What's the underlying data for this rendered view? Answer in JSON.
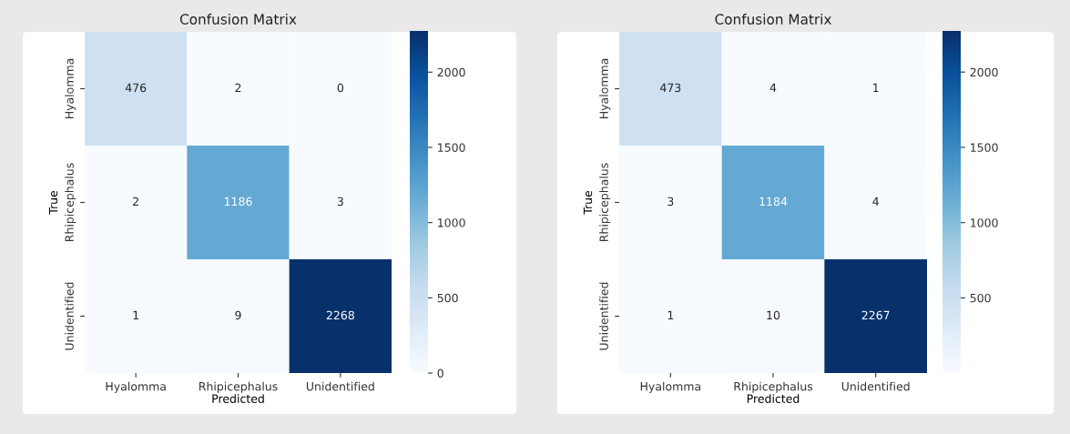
{
  "chart_data": [
    {
      "type": "heatmap",
      "title": "Confusion Matrix",
      "xlabel": "Predicted",
      "ylabel": "True",
      "categories": [
        "Hyalomma",
        "Rhipicephalus",
        "Unidentified"
      ],
      "y_categories": [
        "Hyalomma",
        "Rhipicephalus",
        "Unidentified"
      ],
      "cells": [
        [
          476,
          2,
          0
        ],
        [
          2,
          1186,
          3
        ],
        [
          1,
          9,
          2268
        ]
      ],
      "clim": [
        0,
        2268
      ],
      "cticks": [
        0,
        500,
        1000,
        1500,
        2000
      ],
      "data_labels": true
    },
    {
      "type": "heatmap",
      "title": "Confusion Matrix",
      "xlabel": "Predicted",
      "ylabel": "True",
      "categories": [
        "Hyalomma",
        "Rhipicephalus",
        "Unidentified"
      ],
      "y_categories": [
        "Hyalomma",
        "Rhipicephalus",
        "Unidentified"
      ],
      "cells": [
        [
          473,
          4,
          1
        ],
        [
          3,
          1184,
          4
        ],
        [
          1,
          10,
          2267
        ]
      ],
      "clim": [
        1,
        2267
      ],
      "cticks": [
        500,
        1000,
        1500,
        2000
      ],
      "data_labels": true
    }
  ]
}
